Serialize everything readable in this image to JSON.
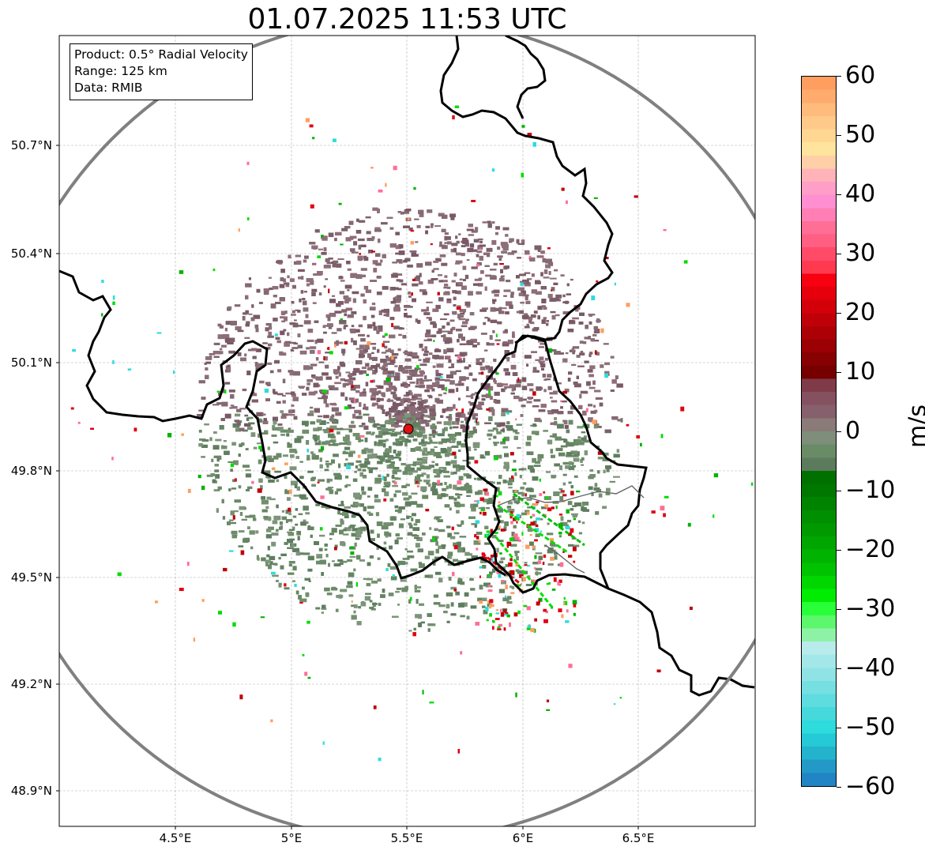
{
  "title": "01.07.2025 11:53 UTC",
  "info_box": {
    "product": "Product: 0.5° Radial Velocity",
    "range": "Range: 125 km",
    "data": "Data: RMIB"
  },
  "map": {
    "lat_ticks": [
      "50.7°N",
      "50.4°N",
      "50.1°N",
      "49.8°N",
      "49.5°N",
      "49.2°N",
      "48.9°N"
    ],
    "lon_ticks": [
      "4.5°E",
      "5°E",
      "5.5°E",
      "6°E",
      "6.5°E"
    ],
    "radar_site": {
      "lon": 5.505,
      "lat": 49.914
    },
    "range_ring_color": "#808080",
    "border_color": "#000000",
    "grid": true
  },
  "colorbar": {
    "unit": "m/s",
    "min": -60,
    "max": 60,
    "ticks": [
      "60",
      "50",
      "40",
      "30",
      "20",
      "10",
      "0",
      "−10",
      "−20",
      "−30",
      "−40",
      "−50",
      "−60"
    ],
    "colors_top_to_bottom": [
      "#ff9e5e",
      "#ffab6e",
      "#ffbb7b",
      "#ffc989",
      "#ffd792",
      "#ffe49d",
      "#ffd0a8",
      "#ffb3b8",
      "#ff9fc8",
      "#ff8fd0",
      "#ff7fb5",
      "#ff6e95",
      "#ff5f82",
      "#ff4a68",
      "#ff3a4f",
      "#f70010",
      "#e5000c",
      "#d3000a",
      "#c00008",
      "#ad0006",
      "#9a0004",
      "#870002",
      "#760000",
      "#7f3c48",
      "#855060",
      "#86606c",
      "#8a7a78",
      "#7e8e7a",
      "#698c66",
      "#5b7b5c",
      "#007000",
      "#007800",
      "#008400",
      "#008f00",
      "#009a00",
      "#00a600",
      "#00b300",
      "#00c300",
      "#00d700",
      "#00ec00",
      "#28ff38",
      "#5cf76c",
      "#8ef2a6",
      "#b8ecec",
      "#a4e7e9",
      "#8fe3e5",
      "#76dfe2",
      "#5edcdf",
      "#45d9dc",
      "#2edbdd",
      "#26c9d6",
      "#24b3cc",
      "#2399c7",
      "#2184c4"
    ]
  }
}
